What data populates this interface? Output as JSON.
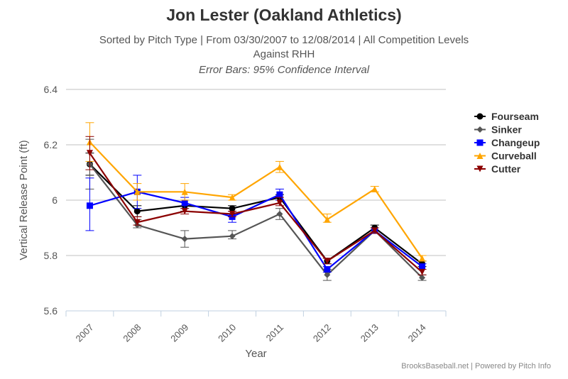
{
  "header": {
    "title": "Jon Lester (Oakland Athletics)",
    "subtitle_line1": "Sorted by Pitch Type | From 03/30/2007 to 12/08/2014 | All Competition Levels",
    "subtitle_line2": "Against RHH",
    "subtitle_line3": "Error Bars: 95% Confidence Interval"
  },
  "credit": "BrooksBaseball.net | Powered by Pitch Info",
  "chart_data": {
    "type": "line",
    "xlabel": "Year",
    "ylabel": "Vertical Release Point (ft)",
    "categories": [
      "2007",
      "2008",
      "2009",
      "2010",
      "2011",
      "2012",
      "2013",
      "2014"
    ],
    "ylim": [
      5.6,
      6.4
    ],
    "yticks": [
      5.6,
      5.8,
      6,
      6.2,
      6.4
    ],
    "ytick_labels": [
      "5.6",
      "5.8",
      "6",
      "6.2",
      "6.4"
    ],
    "grid": true,
    "legend_position": "right",
    "series": [
      {
        "name": "Fourseam",
        "color": "#000000",
        "marker": "circle",
        "values": [
          6.13,
          5.96,
          5.98,
          5.97,
          6.01,
          5.78,
          5.9,
          5.77
        ],
        "err_low": [
          6.09,
          5.94,
          5.96,
          5.96,
          6.0,
          5.77,
          5.89,
          5.76
        ],
        "err_high": [
          6.17,
          5.98,
          6.0,
          5.98,
          6.02,
          5.79,
          5.91,
          5.78
        ]
      },
      {
        "name": "Sinker",
        "color": "#555555",
        "marker": "diamond",
        "values": [
          6.13,
          5.91,
          5.86,
          5.87,
          5.95,
          5.73,
          5.89,
          5.72
        ],
        "err_low": [
          6.04,
          5.9,
          5.83,
          5.86,
          5.93,
          5.71,
          5.88,
          5.71
        ],
        "err_high": [
          6.22,
          5.93,
          5.89,
          5.89,
          5.97,
          5.75,
          5.9,
          5.73
        ]
      },
      {
        "name": "Changeup",
        "color": "#0000ff",
        "marker": "square",
        "values": [
          5.98,
          6.03,
          5.99,
          5.94,
          6.02,
          5.75,
          5.89,
          5.76
        ],
        "err_low": [
          5.89,
          5.97,
          5.97,
          5.92,
          6.0,
          5.74,
          5.88,
          5.75
        ],
        "err_high": [
          6.08,
          6.09,
          6.01,
          5.96,
          6.04,
          5.76,
          5.9,
          5.77
        ]
      },
      {
        "name": "Curveball",
        "color": "#ffa500",
        "marker": "triangle",
        "values": [
          6.21,
          6.03,
          6.03,
          6.01,
          6.12,
          5.93,
          6.04,
          5.79
        ],
        "err_low": [
          6.14,
          6.0,
          6.0,
          6.0,
          6.1,
          5.92,
          6.03,
          5.78
        ],
        "err_high": [
          6.28,
          6.06,
          6.06,
          6.02,
          6.14,
          5.95,
          6.05,
          5.8
        ]
      },
      {
        "name": "Cutter",
        "color": "#8b0000",
        "marker": "triangle-down",
        "values": [
          6.17,
          5.92,
          5.96,
          5.95,
          5.99,
          5.78,
          5.89,
          5.74
        ],
        "err_low": [
          6.11,
          5.91,
          5.95,
          5.94,
          5.98,
          5.77,
          5.88,
          5.73
        ],
        "err_high": [
          6.23,
          5.94,
          5.97,
          5.96,
          6.01,
          5.79,
          5.9,
          5.75
        ]
      }
    ]
  }
}
